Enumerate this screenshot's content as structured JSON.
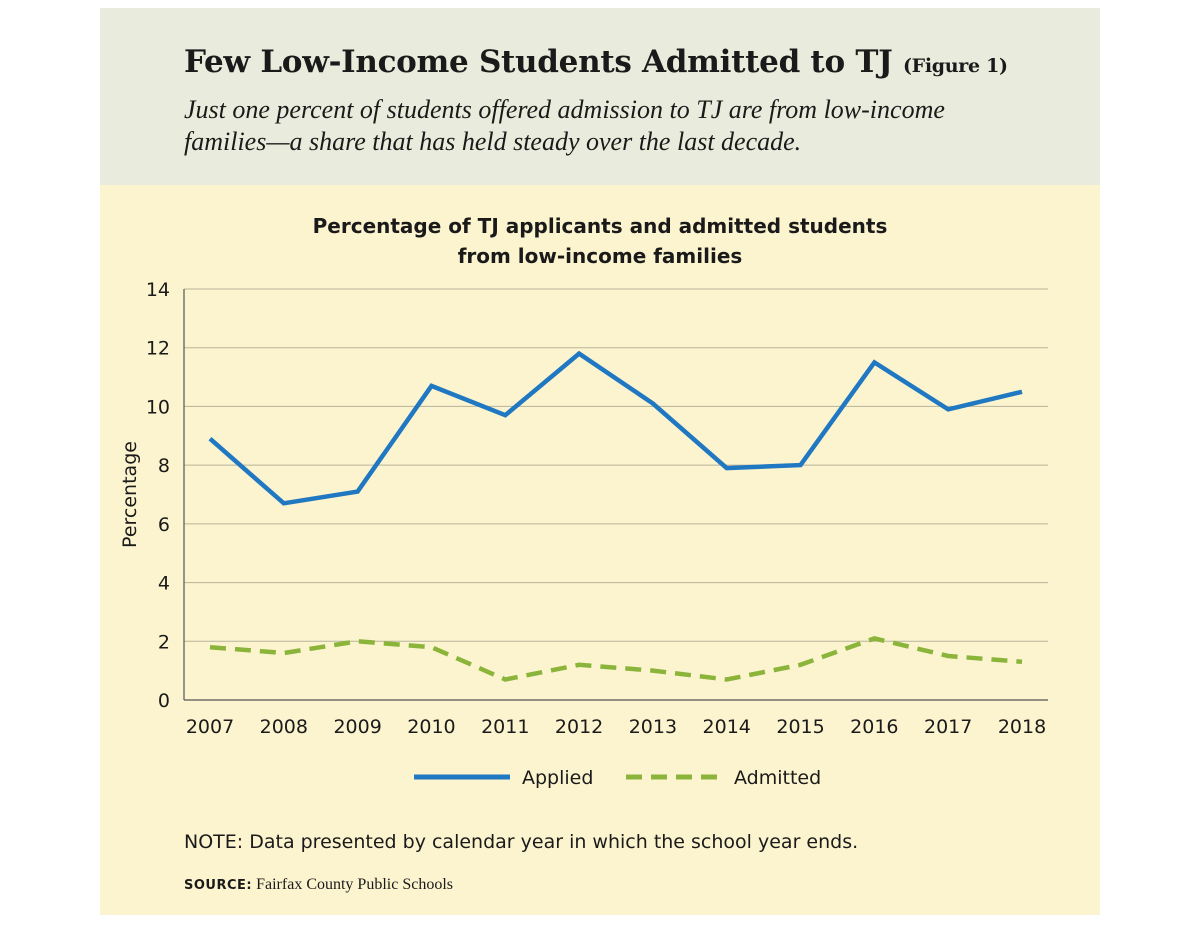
{
  "header": {
    "title": "Few Low-Income Students Admitted to TJ",
    "figure_label": "(Figure 1)",
    "subtitle_line1": "Just one percent of students offered admission to TJ are from low-income",
    "subtitle_line2": "families—a share that has held steady over the last decade."
  },
  "note": "NOTE: Data presented by calendar year in which the school year ends.",
  "source": {
    "label": "SOURCE:",
    "text": "Fairfax County Public Schools"
  },
  "colors": {
    "header_bg": "#e9ecdc",
    "panel_bg": "#fcf4cf",
    "applied": "#1f78c1",
    "admitted": "#8bb43a",
    "grid": "#b8b39a"
  },
  "chart_data": {
    "type": "line",
    "title_line1": "Percentage of TJ applicants and admitted students",
    "title_line2": "from low-income families",
    "xlabel": "",
    "ylabel": "Percentage",
    "ylim": [
      0,
      14
    ],
    "yticks": [
      0,
      2,
      4,
      6,
      8,
      10,
      12,
      14
    ],
    "grid": true,
    "legend_position": "bottom",
    "categories": [
      "2007",
      "2008",
      "2009",
      "2010",
      "2011",
      "2012",
      "2013",
      "2014",
      "2015",
      "2016",
      "2017",
      "2018"
    ],
    "series": [
      {
        "name": "Applied",
        "style": "solid",
        "color": "#1f78c1",
        "values": [
          8.9,
          6.7,
          7.1,
          10.7,
          9.7,
          11.8,
          10.1,
          7.9,
          8.0,
          11.5,
          9.9,
          10.5
        ]
      },
      {
        "name": "Admitted",
        "style": "dashed",
        "color": "#8bb43a",
        "values": [
          1.8,
          1.6,
          2.0,
          1.8,
          0.7,
          1.2,
          1.0,
          0.7,
          1.2,
          2.1,
          1.5,
          1.3
        ]
      }
    ]
  }
}
